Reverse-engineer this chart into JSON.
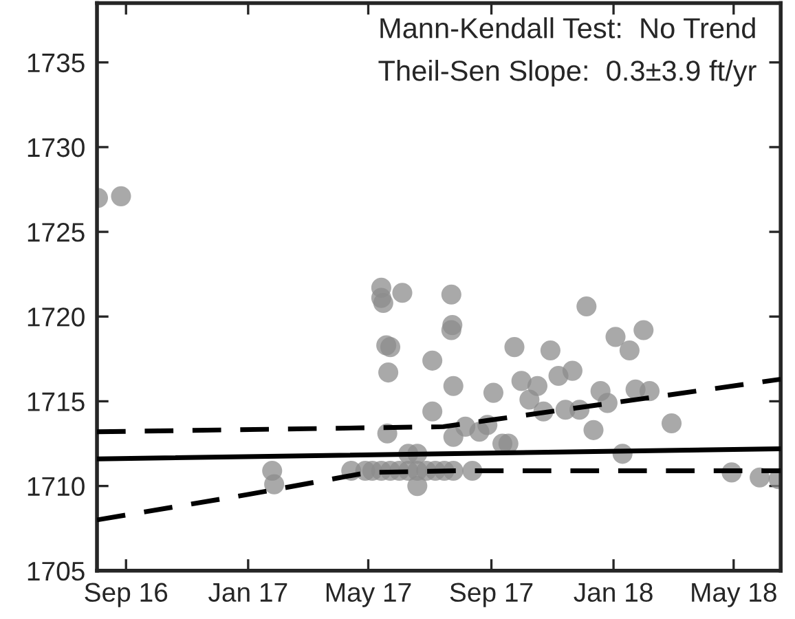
{
  "chart_data": {
    "type": "scatter",
    "annotations": [
      "Mann-Kendall Test:  No Trend",
      "Theil-Sen Slope:  0.3±3.9 ft/yr"
    ],
    "xlim": [
      "2016-08-03",
      "2018-06-17"
    ],
    "xticks": [
      {
        "value": "2016-09-01",
        "label": "Sep 16"
      },
      {
        "value": "2017-01-01",
        "label": "Jan 17"
      },
      {
        "value": "2017-05-01",
        "label": "May 17"
      },
      {
        "value": "2017-09-01",
        "label": "Sep 17"
      },
      {
        "value": "2018-01-01",
        "label": "Jan 18"
      },
      {
        "value": "2018-05-01",
        "label": "May 18"
      }
    ],
    "ylim": [
      1705,
      1738.5
    ],
    "yticks": [
      1705,
      1710,
      1715,
      1720,
      1725,
      1730,
      1735
    ],
    "grid": false,
    "legend": false,
    "series": [
      {
        "color": "#8c8c8c",
        "marker": "circle",
        "x": [
          "2016-08-04",
          "2016-08-27",
          "2017-01-25",
          "2017-01-27",
          "2017-04-14",
          "2017-04-28",
          "2017-05-05",
          "2017-05-14",
          "2017-05-23",
          "2017-06-01",
          "2017-06-10",
          "2017-06-19",
          "2017-06-28",
          "2017-07-07",
          "2017-07-16",
          "2017-07-25",
          "2017-06-10",
          "2017-06-19",
          "2017-06-19",
          "2017-08-13",
          "2017-05-14",
          "2017-05-14",
          "2017-05-16",
          "2017-06-04",
          "2017-05-19",
          "2017-05-23",
          "2017-05-21",
          "2017-05-20",
          "2017-07-04",
          "2017-07-04",
          "2017-07-23",
          "2017-07-24",
          "2017-07-23",
          "2017-07-25",
          "2017-07-25",
          "2017-08-06",
          "2017-08-20",
          "2017-08-28",
          "2017-09-03",
          "2017-09-12",
          "2017-09-18",
          "2017-09-24",
          "2017-10-01",
          "2017-10-09",
          "2017-10-17",
          "2017-10-23",
          "2017-10-30",
          "2017-11-07",
          "2017-11-14",
          "2017-11-21",
          "2017-11-28",
          "2017-12-05",
          "2017-12-12",
          "2017-12-19",
          "2017-12-26",
          "2018-01-03",
          "2018-01-10",
          "2018-01-17",
          "2018-01-23",
          "2018-01-31",
          "2018-02-06",
          "2018-02-28",
          "2018-04-29",
          "2018-05-27",
          "2018-06-15"
        ],
        "values": [
          1727.0,
          1727.1,
          1710.9,
          1710.1,
          1710.9,
          1710.9,
          1710.9,
          1710.9,
          1710.9,
          1710.9,
          1710.9,
          1710.9,
          1710.9,
          1710.9,
          1710.9,
          1710.9,
          1711.9,
          1711.9,
          1710.0,
          1710.9,
          1721.7,
          1721.1,
          1720.8,
          1721.4,
          1718.3,
          1718.2,
          1716.7,
          1713.1,
          1717.4,
          1714.4,
          1721.3,
          1719.5,
          1719.2,
          1715.9,
          1712.9,
          1713.5,
          1713.2,
          1713.6,
          1715.5,
          1712.5,
          1712.5,
          1718.2,
          1716.2,
          1715.1,
          1715.9,
          1714.4,
          1718.0,
          1716.5,
          1714.5,
          1716.8,
          1714.5,
          1720.6,
          1713.3,
          1715.6,
          1714.9,
          1718.8,
          1711.9,
          1718.0,
          1715.7,
          1719.2,
          1715.6,
          1713.7,
          1710.8,
          1710.5,
          1710.4
        ]
      },
      {
        "type": "line",
        "color": "#000000",
        "line_style": "solid",
        "marker": "none",
        "x": [
          "2016-08-03",
          "2018-06-17"
        ],
        "values": [
          1711.6,
          1712.2
        ]
      },
      {
        "type": "line",
        "color": "#000000",
        "line_style": "dashed",
        "marker": "none",
        "x": [
          "2016-08-03",
          "2017-07-15",
          "2017-09-01",
          "2018-06-17"
        ],
        "values": [
          1713.2,
          1713.5,
          1713.9,
          1716.3
        ]
      },
      {
        "type": "line",
        "color": "#000000",
        "line_style": "dashed",
        "marker": "none",
        "x": [
          "2016-08-03",
          "2017-01-01",
          "2017-05-01",
          "2017-08-01",
          "2018-06-17"
        ],
        "values": [
          1708.0,
          1709.5,
          1710.8,
          1710.9,
          1710.9
        ]
      }
    ]
  }
}
